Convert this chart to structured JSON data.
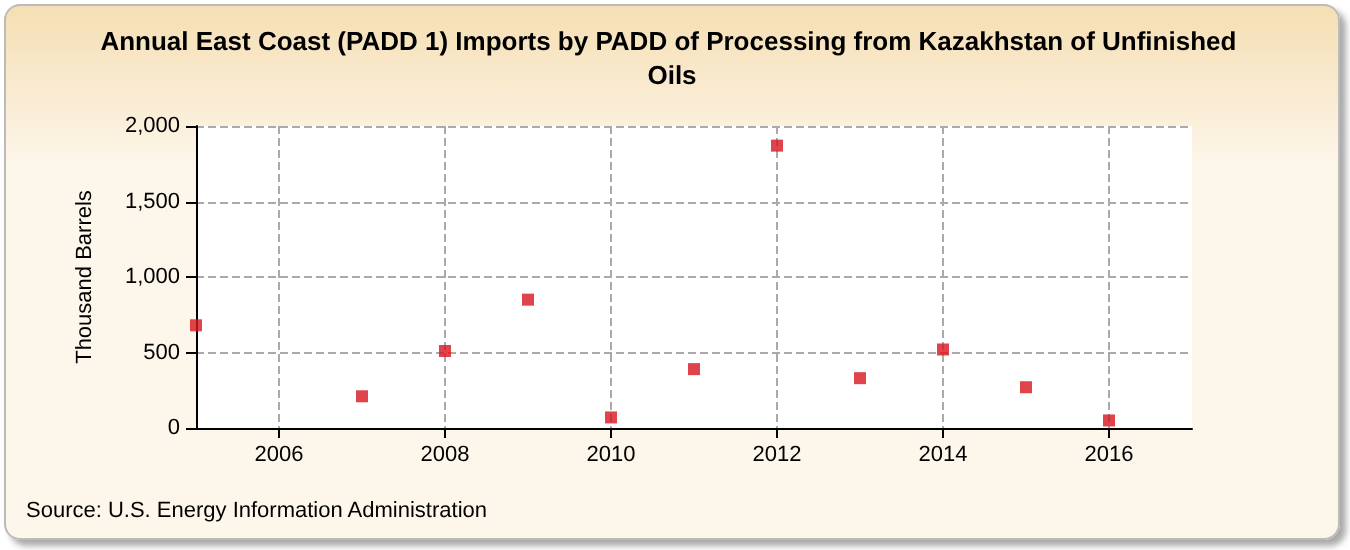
{
  "chart_data": {
    "type": "scatter",
    "title": "Annual East Coast (PADD 1) Imports by PADD of Processing from Kazakhstan of Unfinished Oils",
    "ylabel": "Thousand Barrels",
    "annotations": [
      "Source: U.S. Energy Information Administration"
    ],
    "x": [
      2005,
      2007,
      2008,
      2009,
      2010,
      2011,
      2012,
      2013,
      2014,
      2015,
      2016
    ],
    "series": [
      {
        "color": "#d7141e",
        "values": [
          680,
          210,
          510,
          850,
          70,
          390,
          1870,
          330,
          520,
          270,
          50
        ]
      }
    ],
    "xlim": [
      2005,
      2017
    ],
    "xticks": [
      2006,
      2008,
      2010,
      2012,
      2014,
      2016
    ],
    "ylim": [
      0,
      2000
    ],
    "yticks": [
      {
        "value": 0,
        "label": "0"
      },
      {
        "value": 500,
        "label": "500"
      },
      {
        "value": 1000,
        "label": "1,000"
      },
      {
        "value": 1500,
        "label": "1,500"
      },
      {
        "value": 2000,
        "label": "2,000"
      }
    ],
    "grid": true,
    "marker": "square"
  }
}
